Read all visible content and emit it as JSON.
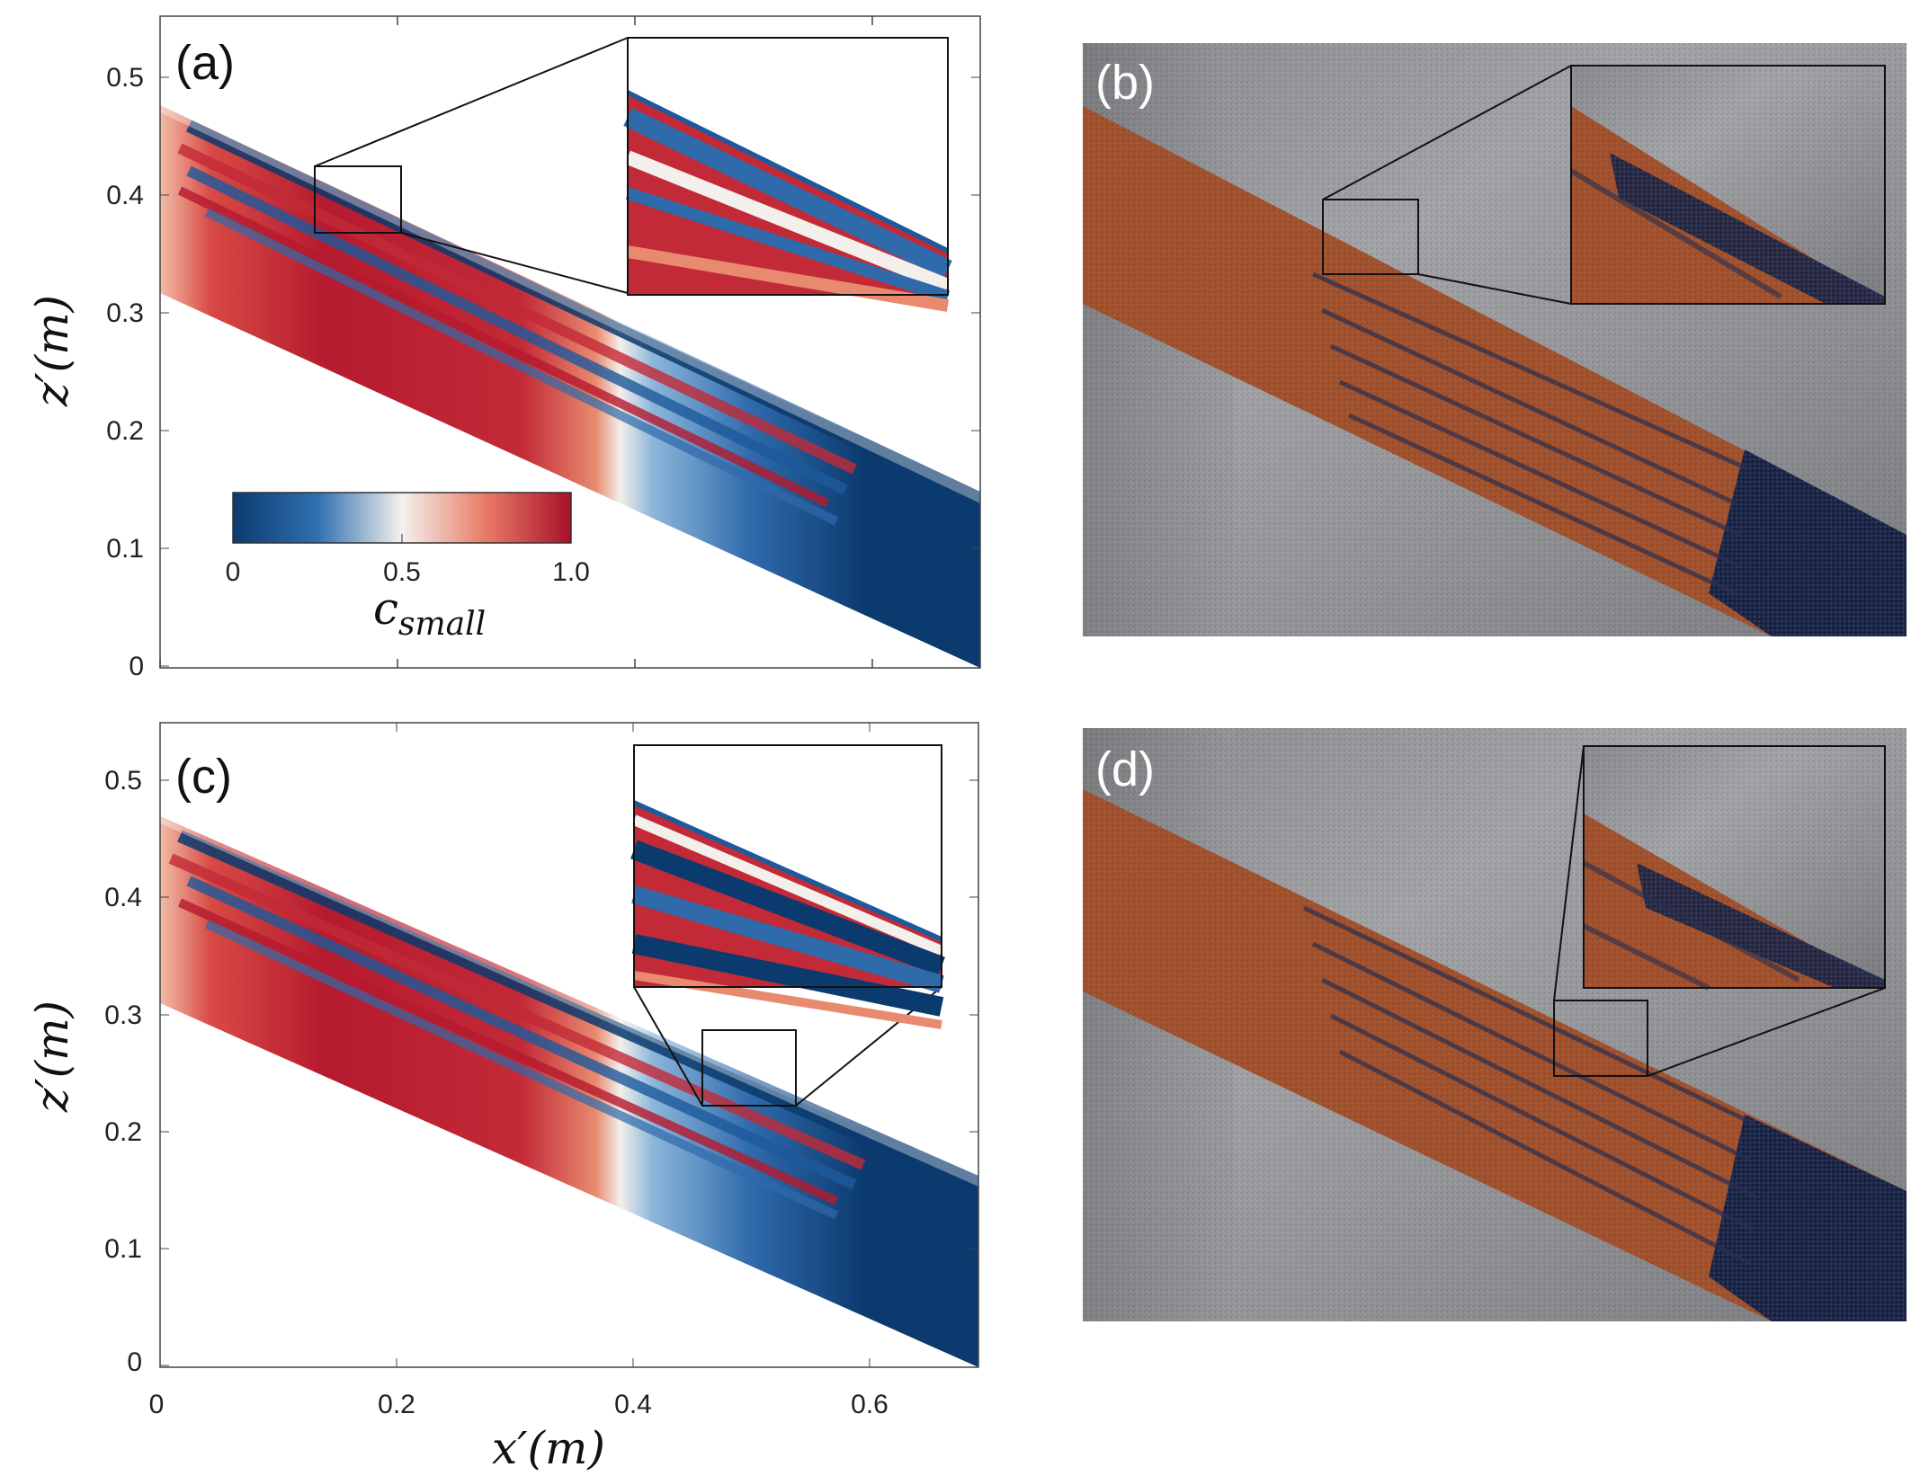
{
  "figure": {
    "panel_labels": {
      "a": "(a)",
      "b": "(b)",
      "c": "(c)",
      "d": "(d)"
    },
    "xlabel": "x′(m)",
    "ylabel": "z′(m)",
    "x_ticks": [
      "0",
      "0.2",
      "0.4",
      "0.6"
    ],
    "z_ticks": [
      "0",
      "0.1",
      "0.2",
      "0.3",
      "0.4",
      "0.5"
    ],
    "colorbar": {
      "title_main": "c",
      "title_sub": "small",
      "ticks": [
        "0",
        "0.5",
        "1.0"
      ],
      "colors": [
        "#0b3a6e",
        "#2f6fb0",
        "#f4f1ee",
        "#e87a64",
        "#a8102a"
      ]
    }
  },
  "chart_data": [
    {
      "type": "heatmap",
      "panel": "(a)",
      "xlabel": "",
      "ylabel": "z′(m)",
      "xlim": [
        0,
        0.69
      ],
      "ylim": [
        0,
        0.55
      ],
      "value_range": [
        0,
        1.0
      ],
      "colorbar_label": "c_small"
    },
    {
      "type": "heatmap",
      "panel": "(c)",
      "xlabel": "x′(m)",
      "ylabel": "z′(m)",
      "xlim": [
        0,
        0.69
      ],
      "ylim": [
        0,
        0.55
      ],
      "value_range": [
        0,
        1.0
      ]
    }
  ],
  "photos": {
    "colors": {
      "metal": "#9a9b9d",
      "sand": "#a2522e",
      "dark_grains": "#1f2a4a"
    }
  }
}
